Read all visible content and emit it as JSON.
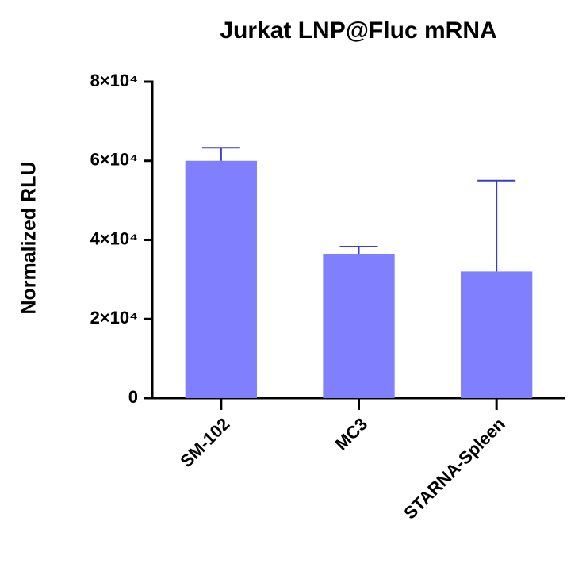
{
  "chart_data": {
    "type": "bar",
    "title": "Jurkat LNP@Fluc mRNA",
    "y_label": "Normalized RLU",
    "categories": [
      "SM-102",
      "MC3",
      "STARNA-Spleen"
    ],
    "values": [
      60000,
      36500,
      32000
    ],
    "errors": [
      3300,
      1800,
      23000
    ],
    "color": "#8080ff",
    "error_color": "#3a3ad0",
    "ylim": [
      0,
      80000
    ],
    "yticks": [
      0,
      {
        "value": 20000,
        "label": "2×10⁴"
      },
      {
        "value": 40000,
        "label": "4×10⁴"
      },
      {
        "value": 60000,
        "label": "6×10⁴"
      },
      {
        "value": 80000,
        "label": "8×10⁴"
      }
    ],
    "grid": false
  }
}
